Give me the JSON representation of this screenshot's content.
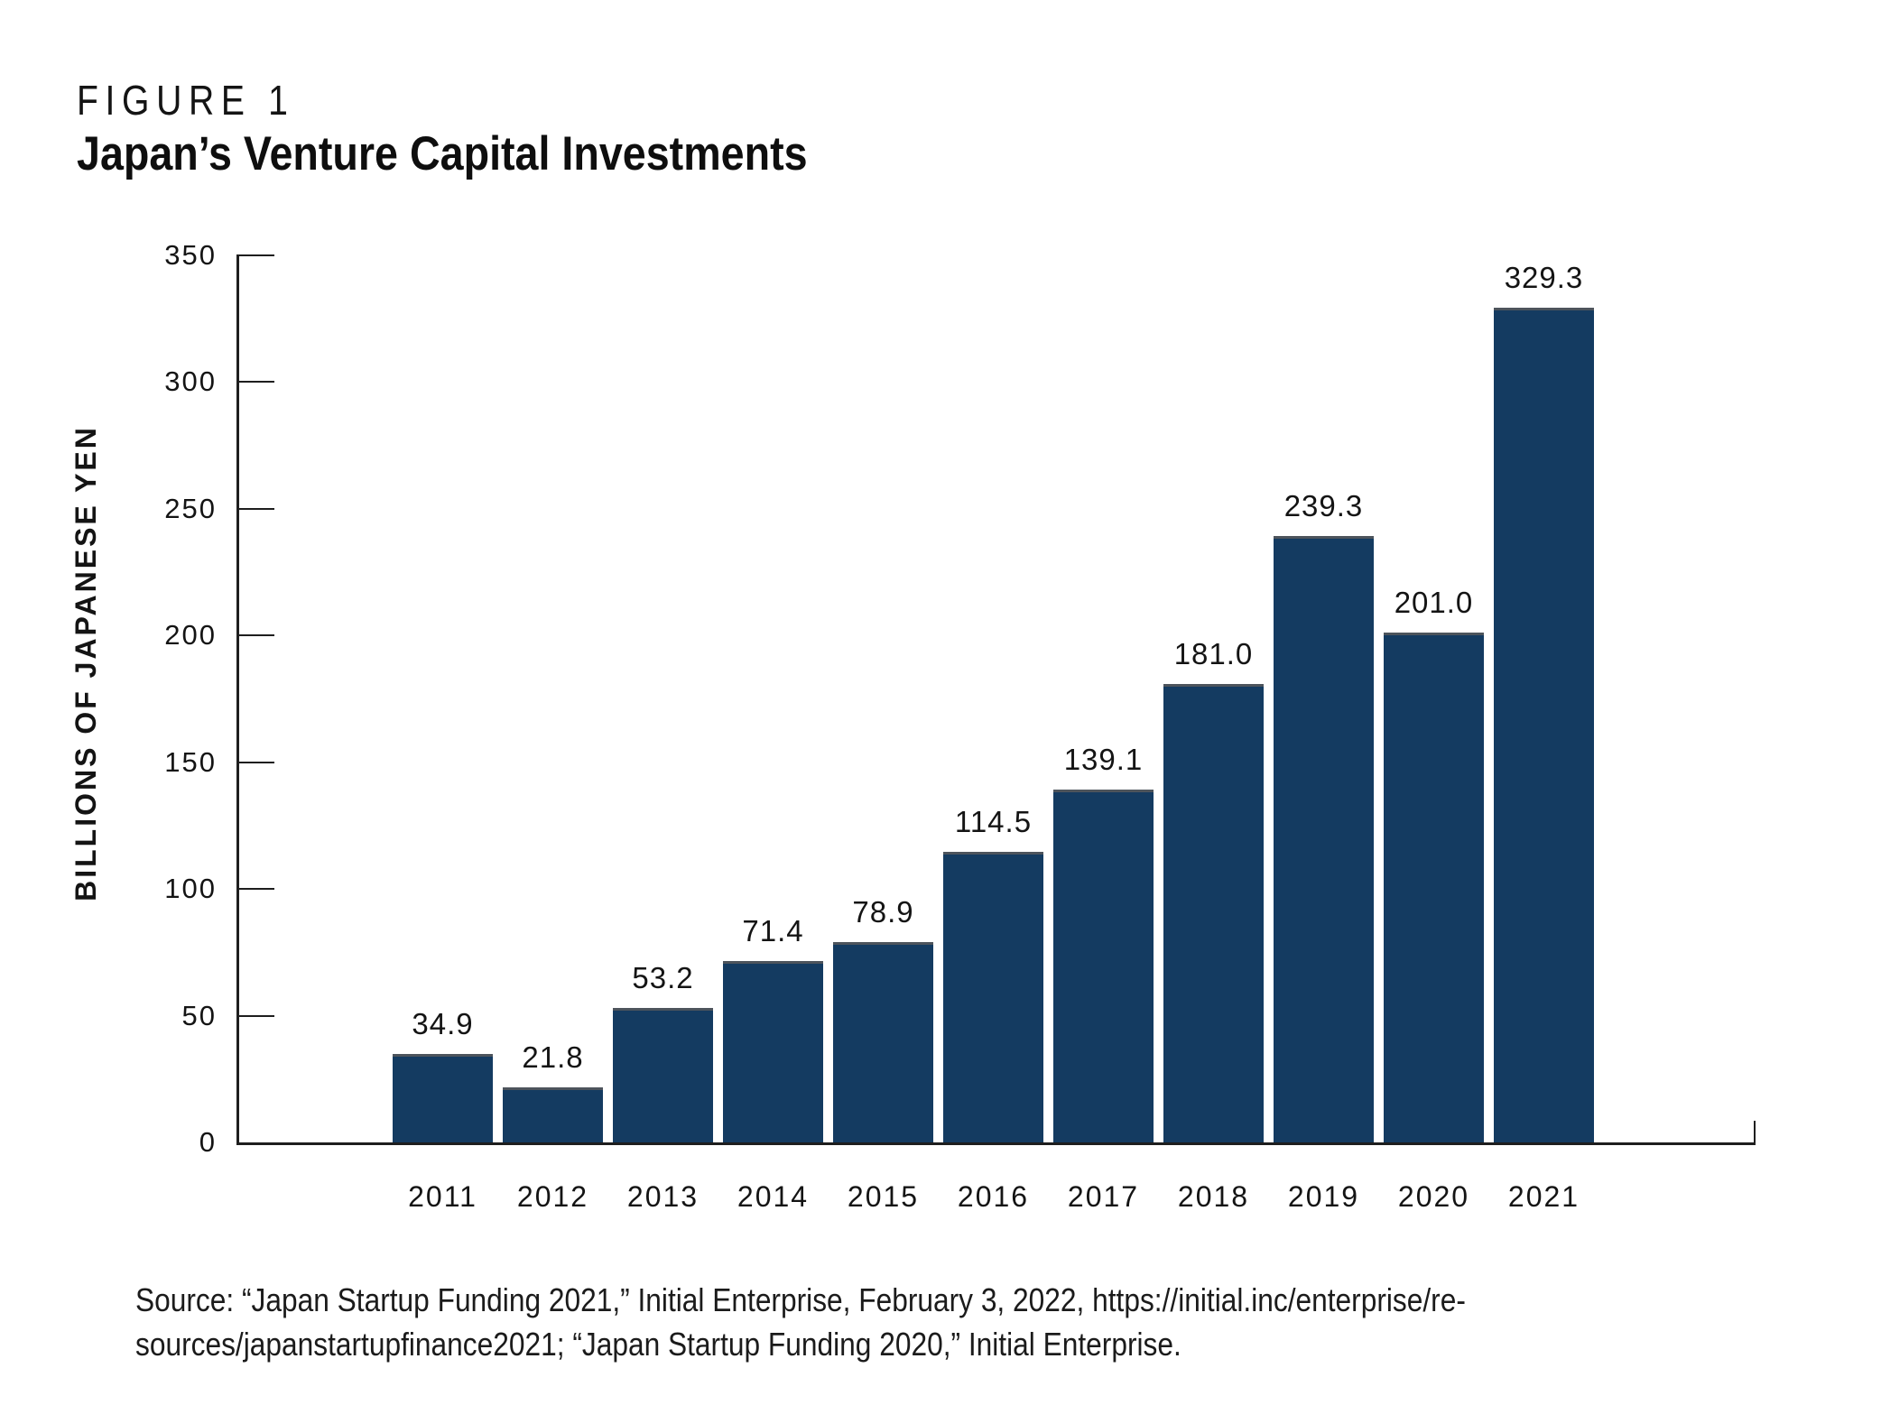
{
  "figure_label": "FIGURE 1",
  "title": "Japan’s Venture Capital Investments",
  "source": {
    "line1": "Source: “Japan Startup Funding 2021,” Initial Enterprise, February 3, 2022, https://initial.inc/enterprise/re-",
    "line2": "sources/japanstartupfinance2021; “Japan Startup Funding 2020,” Initial Enterprise."
  },
  "chart_data": {
    "type": "bar",
    "title": "Japan’s Venture Capital Investments",
    "categories": [
      "2011",
      "2012",
      "2013",
      "2014",
      "2015",
      "2016",
      "2017",
      "2018",
      "2019",
      "2020",
      "2021"
    ],
    "values": [
      34.9,
      21.8,
      53.2,
      71.4,
      78.9,
      114.5,
      139.1,
      181.0,
      239.3,
      201.0,
      329.3
    ],
    "value_labels": [
      "34.9",
      "21.8",
      "53.2",
      "71.4",
      "78.9",
      "114.5",
      "139.1",
      "181.0",
      "239.3",
      "201.0",
      "329.3"
    ],
    "xlabel": "",
    "ylabel": "BILLIONS OF JAPANESE YEN",
    "ylim": [
      0,
      350
    ],
    "yticks": [
      0,
      50,
      100,
      150,
      200,
      250,
      300,
      350
    ],
    "grid": false,
    "legend": null,
    "bar_color": "#143b61",
    "axis_color": "#1e1e1e",
    "text_color": "#141414"
  }
}
